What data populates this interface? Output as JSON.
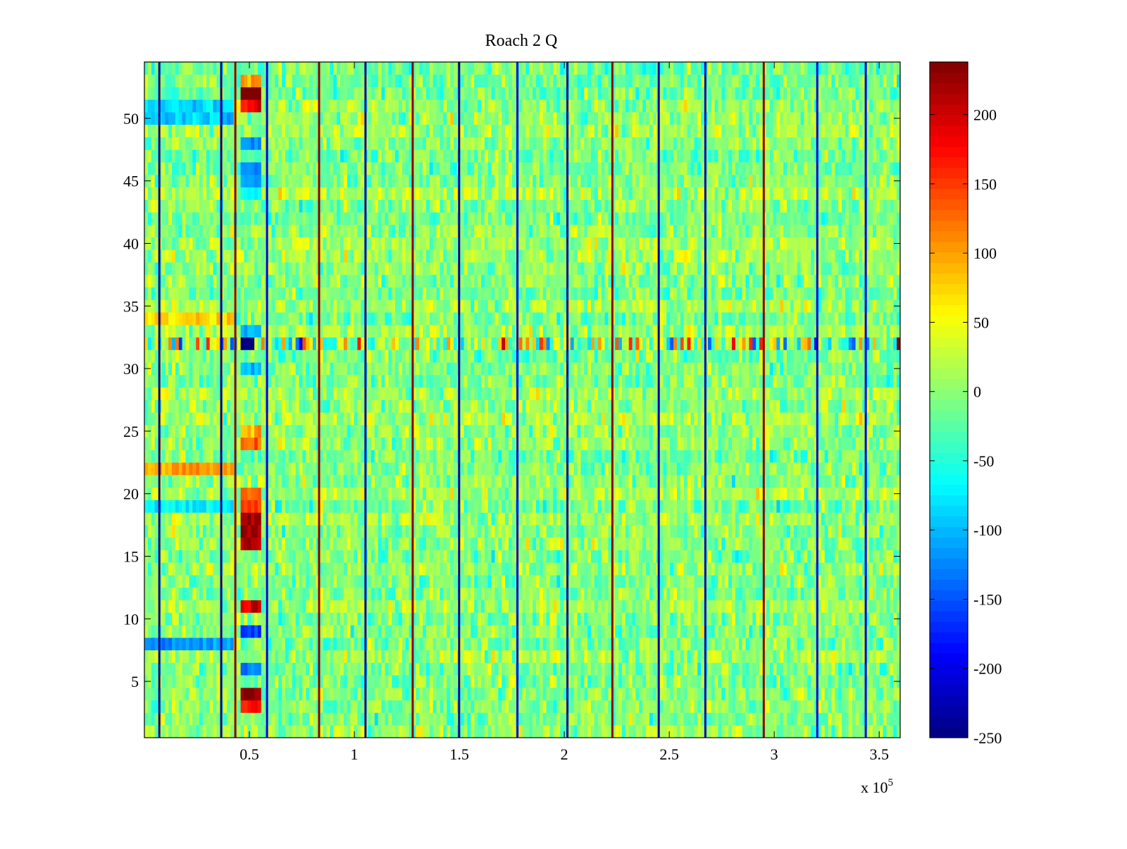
{
  "chart_data": {
    "type": "heatmap",
    "title": "Roach 2 Q",
    "xlabel": "",
    "ylabel": "",
    "x_exponent_label": "x 10",
    "x_exponent": "5",
    "xlim": [
      0,
      360000
    ],
    "ylim": [
      0.5,
      54.5
    ],
    "rows": 54,
    "x_ticks": [
      50000,
      100000,
      150000,
      200000,
      250000,
      300000,
      350000
    ],
    "x_tick_labels": [
      "0.5",
      "1",
      "1.5",
      "2",
      "2.5",
      "3",
      "3.5"
    ],
    "y_ticks": [
      5,
      10,
      15,
      20,
      25,
      30,
      35,
      40,
      45,
      50
    ],
    "y_tick_labels": [
      "5",
      "10",
      "15",
      "20",
      "25",
      "30",
      "35",
      "40",
      "45",
      "50"
    ],
    "colormap": "jet",
    "clim": [
      -250,
      238
    ],
    "colorbar_ticks": [
      -250,
      -200,
      -150,
      -100,
      -50,
      0,
      50,
      100,
      150,
      200
    ],
    "colorbar_tick_labels": [
      "-250",
      "-200",
      "-150",
      "-100",
      "-50",
      "0",
      "50",
      "100",
      "150",
      "200"
    ],
    "background_mean": 0,
    "background_spread": 45,
    "stripes": [
      {
        "x": 7100,
        "value": -240
      },
      {
        "x": 36600,
        "value": -240
      },
      {
        "x": 43300,
        "value": 230
      },
      {
        "x": 58400,
        "value": -200
      },
      {
        "x": 83200,
        "value": 230
      },
      {
        "x": 105300,
        "value": -230
      },
      {
        "x": 127800,
        "value": 230
      },
      {
        "x": 149900,
        "value": -230
      },
      {
        "x": 177700,
        "value": -200
      },
      {
        "x": 201500,
        "value": -230
      },
      {
        "x": 222900,
        "value": 230
      },
      {
        "x": 245000,
        "value": -230
      },
      {
        "x": 267200,
        "value": -220
      },
      {
        "x": 295000,
        "value": 230
      },
      {
        "x": 320500,
        "value": -200
      },
      {
        "x": 343600,
        "value": -200
      }
    ],
    "noisy_rows": [
      {
        "row": 32,
        "spread": 140
      }
    ],
    "features": [
      {
        "row": 52,
        "x0": 46000,
        "x1": 56000,
        "value": 235
      },
      {
        "row": 51,
        "x0": 46000,
        "x1": 56000,
        "value": 180
      },
      {
        "row": 53,
        "x0": 46000,
        "x1": 56000,
        "value": 110
      },
      {
        "row": 48,
        "x0": 46000,
        "x1": 56000,
        "value": -120
      },
      {
        "row": 46,
        "x0": 46000,
        "x1": 56000,
        "value": -120
      },
      {
        "row": 45,
        "x0": 46000,
        "x1": 56000,
        "value": -110
      },
      {
        "row": 44,
        "x0": 46000,
        "x1": 56000,
        "value": -70
      },
      {
        "row": 33,
        "x0": 46000,
        "x1": 56000,
        "value": -110
      },
      {
        "row": 32,
        "x0": 46000,
        "x1": 53000,
        "value": -250
      },
      {
        "row": 30,
        "x0": 46000,
        "x1": 56000,
        "value": -100
      },
      {
        "row": 25,
        "x0": 46000,
        "x1": 56000,
        "value": 100
      },
      {
        "row": 24,
        "x0": 46000,
        "x1": 56000,
        "value": 120
      },
      {
        "row": 20,
        "x0": 46000,
        "x1": 56000,
        "value": 120
      },
      {
        "row": 18,
        "x0": 46000,
        "x1": 55000,
        "value": 235
      },
      {
        "row": 17,
        "x0": 46000,
        "x1": 55000,
        "value": 230
      },
      {
        "row": 16,
        "x0": 46000,
        "x1": 55000,
        "value": 215
      },
      {
        "row": 19,
        "x0": 46000,
        "x1": 56000,
        "value": 150
      },
      {
        "row": 11,
        "x0": 46000,
        "x1": 56000,
        "value": 190
      },
      {
        "row": 9,
        "x0": 46000,
        "x1": 55000,
        "value": -160
      },
      {
        "row": 6,
        "x0": 46000,
        "x1": 55000,
        "value": -130
      },
      {
        "row": 4,
        "x0": 46000,
        "x1": 56000,
        "value": 235
      },
      {
        "row": 3,
        "x0": 46000,
        "x1": 56000,
        "value": 170
      },
      {
        "row": 51,
        "x0": 0,
        "x1": 43000,
        "value": -80
      },
      {
        "row": 50,
        "x0": 0,
        "x1": 43000,
        "value": -90
      },
      {
        "row": 22,
        "x0": 0,
        "x1": 43000,
        "value": 100
      },
      {
        "row": 8,
        "x0": 0,
        "x1": 43000,
        "value": -120
      },
      {
        "row": 34,
        "x0": 0,
        "x1": 43000,
        "value": 70
      },
      {
        "row": 19,
        "x0": 0,
        "x1": 43000,
        "value": -70
      }
    ]
  }
}
